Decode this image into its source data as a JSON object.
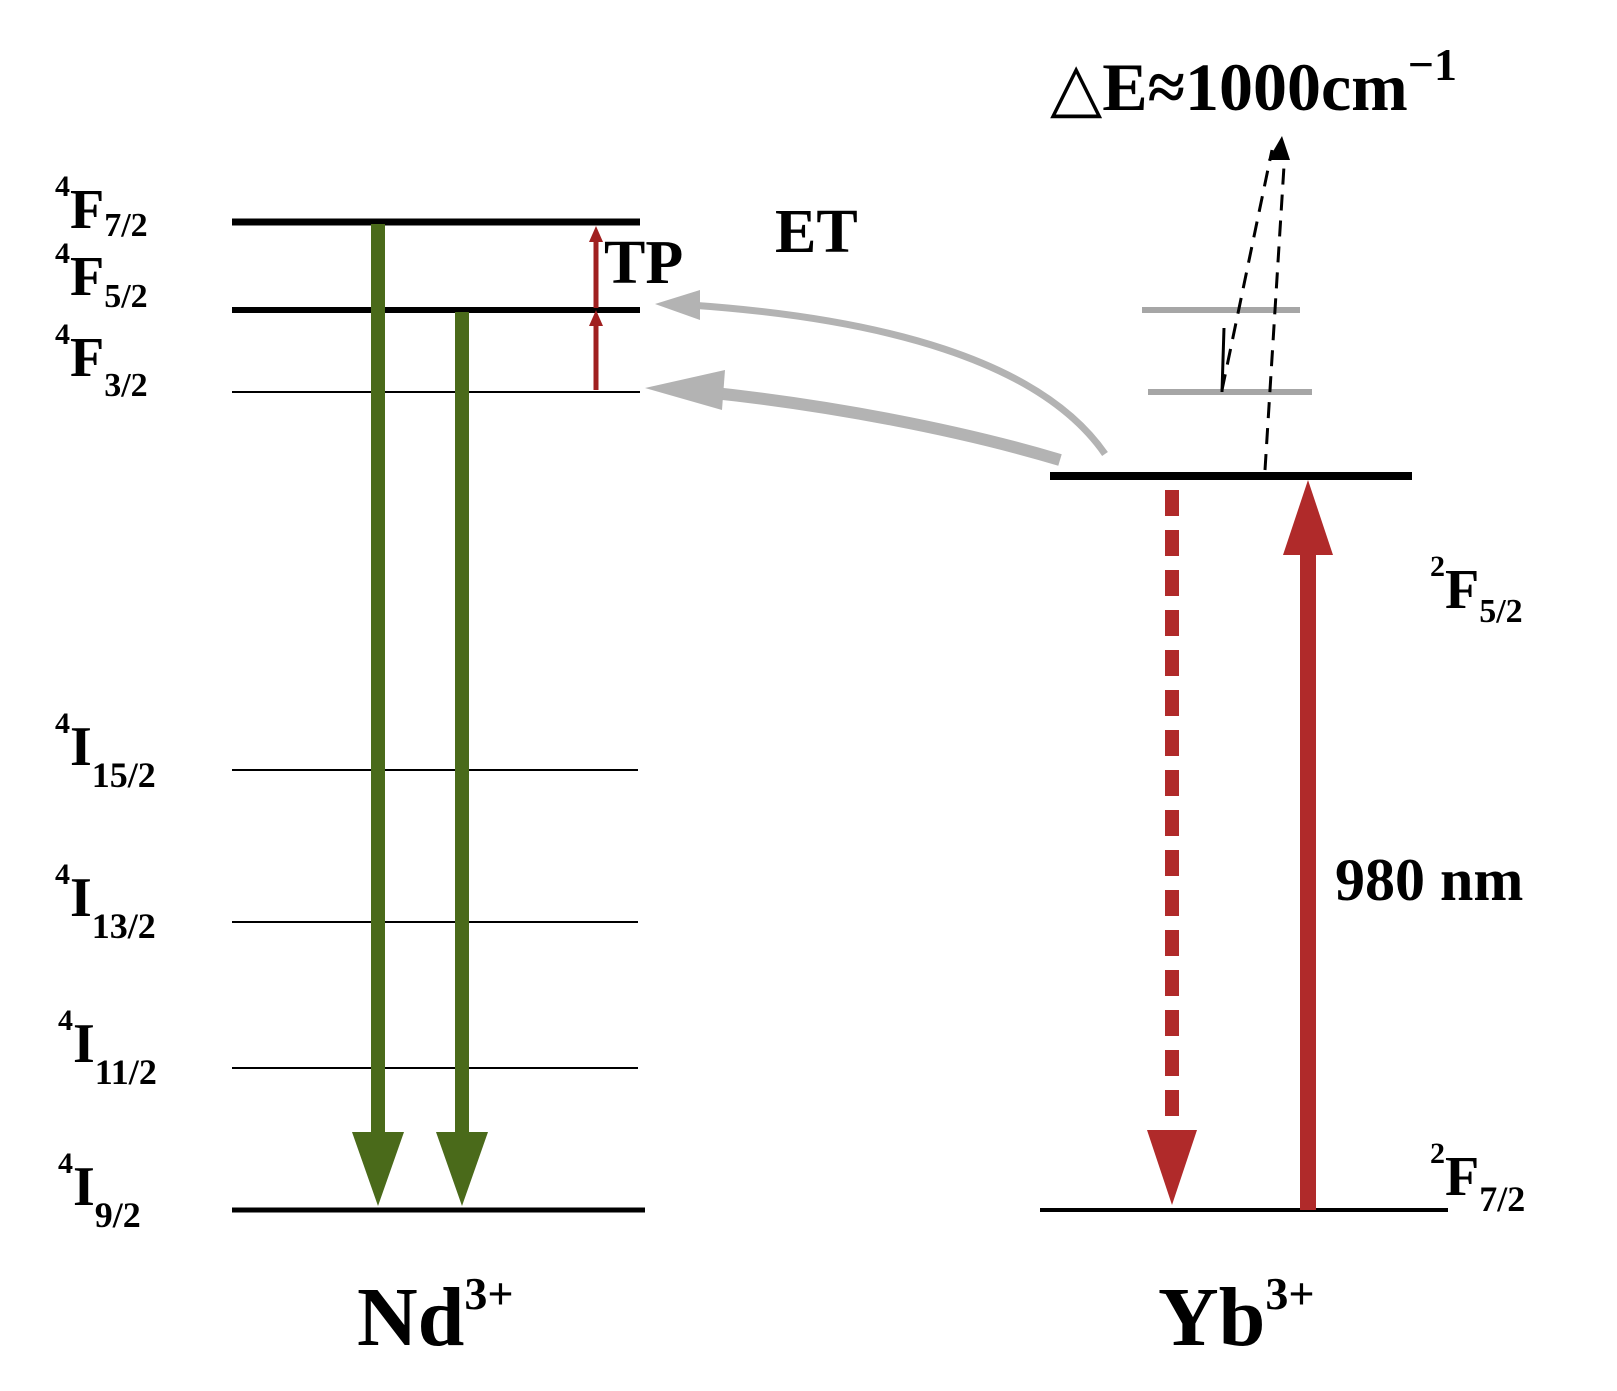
{
  "nd_levels": [
    {
      "id": "4F7/2",
      "sup": "4",
      "base": "F",
      "sub": "7/2"
    },
    {
      "id": "4F5/2",
      "sup": "4",
      "base": "F",
      "sub": "5/2"
    },
    {
      "id": "4F3/2",
      "sup": "4",
      "base": "F",
      "sub": "3/2"
    },
    {
      "id": "4I15/2",
      "sup": "4",
      "base": "I",
      "sub": "15/2"
    },
    {
      "id": "4I13/2",
      "sup": "4",
      "base": "I",
      "sub": "13/2"
    },
    {
      "id": "4I11/2",
      "sup": "4",
      "base": "I",
      "sub": "11/2"
    },
    {
      "id": "4I9/2",
      "sup": "4",
      "base": "I",
      "sub": "9/2"
    }
  ],
  "yb_levels": [
    {
      "id": "2F5/2",
      "sup": "2",
      "base": "F",
      "sub": "5/2"
    },
    {
      "id": "2F7/2",
      "sup": "2",
      "base": "F",
      "sub": "7/2"
    }
  ],
  "ion_nd": {
    "base": "Nd",
    "sup": "3+"
  },
  "ion_yb": {
    "base": "Yb",
    "sup": "3+"
  },
  "labels": {
    "tp": "TP",
    "et": "ET",
    "pump": "980 nm",
    "delta_e": "△E≈1000cm",
    "delta_e_sup": "−1"
  },
  "colors": {
    "level": "#000000",
    "virtual_level": "#a6a6a6",
    "emission": "#4a6a1a",
    "pump": "#b02a2a",
    "tp": "#a02020",
    "et": "#b3b3b3"
  }
}
